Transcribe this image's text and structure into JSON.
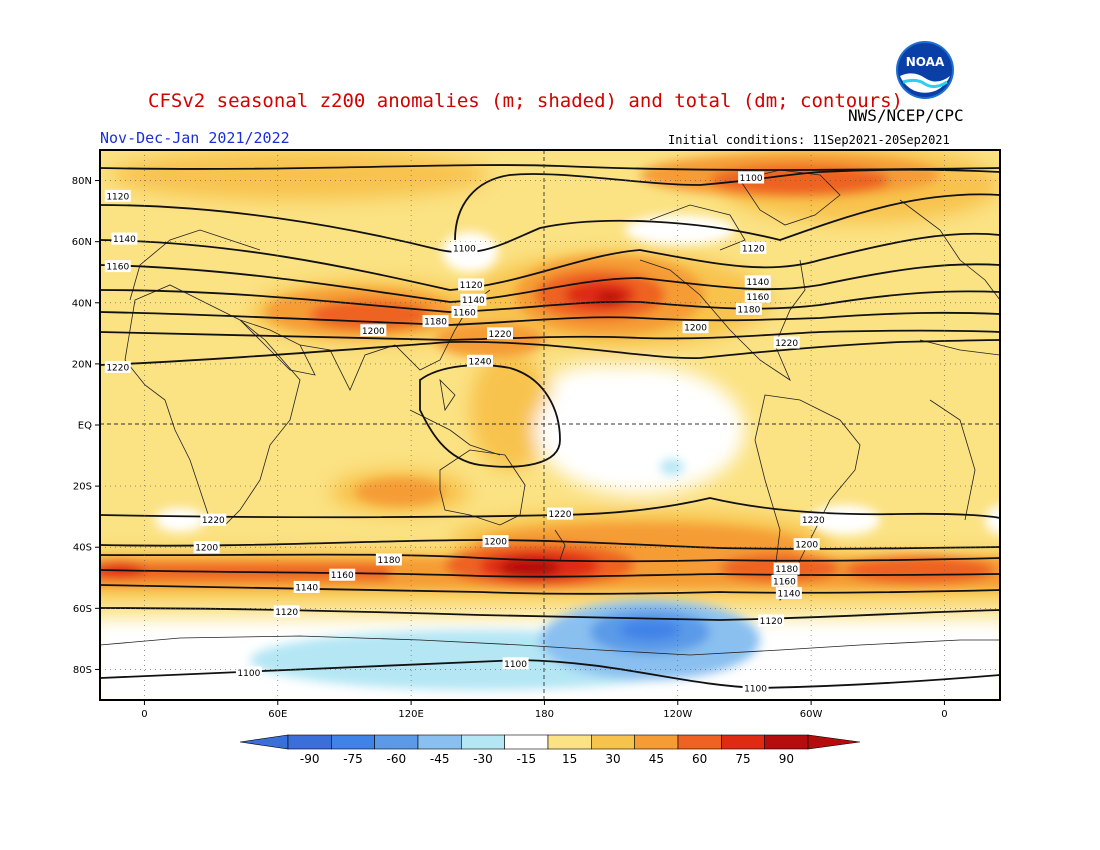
{
  "header": {
    "title": "CFSv2 seasonal z200 anomalies (m; shaded) and total (dm; contours)",
    "period": "Nov-Dec-Jan 2021/2022",
    "agency": "NWS/NCEP/CPC",
    "initial_conditions": "Initial conditions: 11Sep2021-20Sep2021",
    "logo_text": "NOAA"
  },
  "map": {
    "projection": "equirectangular",
    "lon_range": [
      -20,
      385
    ],
    "lat_range": [
      -90,
      90
    ],
    "lat_ticks": [
      {
        "lat": 80,
        "label": "80N"
      },
      {
        "lat": 60,
        "label": "60N"
      },
      {
        "lat": 40,
        "label": "40N"
      },
      {
        "lat": 20,
        "label": "20N"
      },
      {
        "lat": 0,
        "label": "EQ"
      },
      {
        "lat": -20,
        "label": "20S"
      },
      {
        "lat": -40,
        "label": "40S"
      },
      {
        "lat": -60,
        "label": "60S"
      },
      {
        "lat": -80,
        "label": "80S"
      }
    ],
    "lon_ticks": [
      {
        "lon": 0,
        "label": "0"
      },
      {
        "lon": 60,
        "label": "60E"
      },
      {
        "lon": 120,
        "label": "120E"
      },
      {
        "lon": 180,
        "label": "180"
      },
      {
        "lon": 240,
        "label": "120W"
      },
      {
        "lon": 300,
        "label": "60W"
      },
      {
        "lon": 360,
        "label": "0"
      }
    ],
    "contour_labels": [
      {
        "lon": -12,
        "lat": 75,
        "label": "1120"
      },
      {
        "lon": -9,
        "lat": 61,
        "label": "1140"
      },
      {
        "lon": -12,
        "lat": 52,
        "label": "1160"
      },
      {
        "lon": -12,
        "lat": 19,
        "label": "1220"
      },
      {
        "lon": 144,
        "lat": 58,
        "label": "1100"
      },
      {
        "lon": 147,
        "lat": 46,
        "label": "1120"
      },
      {
        "lon": 148,
        "lat": 41,
        "label": "1140"
      },
      {
        "lon": 144,
        "lat": 37,
        "label": "1160"
      },
      {
        "lon": 131,
        "lat": 34,
        "label": "1180"
      },
      {
        "lon": 103,
        "lat": 31,
        "label": "1200"
      },
      {
        "lon": 160,
        "lat": 30,
        "label": "1220"
      },
      {
        "lon": 151,
        "lat": 21,
        "label": "1240"
      },
      {
        "lon": 273,
        "lat": 81,
        "label": "1100"
      },
      {
        "lon": 274,
        "lat": 58,
        "label": "1120"
      },
      {
        "lon": 276,
        "lat": 47,
        "label": "1140"
      },
      {
        "lon": 276,
        "lat": 42,
        "label": "1160"
      },
      {
        "lon": 272,
        "lat": 38,
        "label": "1180"
      },
      {
        "lon": 248,
        "lat": 32,
        "label": "1200"
      },
      {
        "lon": 289,
        "lat": 27,
        "label": "1220"
      },
      {
        "lon": 31,
        "lat": -31,
        "label": "1220"
      },
      {
        "lon": 28,
        "lat": -40,
        "label": "1200"
      },
      {
        "lon": 110,
        "lat": -44,
        "label": "1180"
      },
      {
        "lon": 89,
        "lat": -49,
        "label": "1160"
      },
      {
        "lon": 73,
        "lat": -53,
        "label": "1140"
      },
      {
        "lon": 64,
        "lat": -61,
        "label": "1120"
      },
      {
        "lon": 47,
        "lat": -81,
        "label": "1100"
      },
      {
        "lon": 158,
        "lat": -38,
        "label": "1200"
      },
      {
        "lon": 187,
        "lat": -29,
        "label": "1220"
      },
      {
        "lon": 167,
        "lat": -78,
        "label": "1100"
      },
      {
        "lon": 301,
        "lat": -31,
        "label": "1220"
      },
      {
        "lon": 298,
        "lat": -39,
        "label": "1200"
      },
      {
        "lon": 289,
        "lat": -47,
        "label": "1180"
      },
      {
        "lon": 288,
        "lat": -51,
        "label": "1160"
      },
      {
        "lon": 290,
        "lat": -55,
        "label": "1140"
      },
      {
        "lon": 282,
        "lat": -64,
        "label": "1120"
      },
      {
        "lon": 275,
        "lat": -86,
        "label": "1100"
      }
    ]
  },
  "colorbar": {
    "ticks": [
      "-90",
      "-75",
      "-60",
      "-45",
      "-30",
      "-15",
      "15",
      "30",
      "45",
      "60",
      "75",
      "90"
    ],
    "colors": [
      "#3a6fd9",
      "#3f82e8",
      "#5a9ae8",
      "#8ac0f0",
      "#b4e6f4",
      "#ffffff",
      "#fbe283",
      "#f8c34d",
      "#f59c34",
      "#ee6222",
      "#df2b12",
      "#b50d0d"
    ]
  }
}
